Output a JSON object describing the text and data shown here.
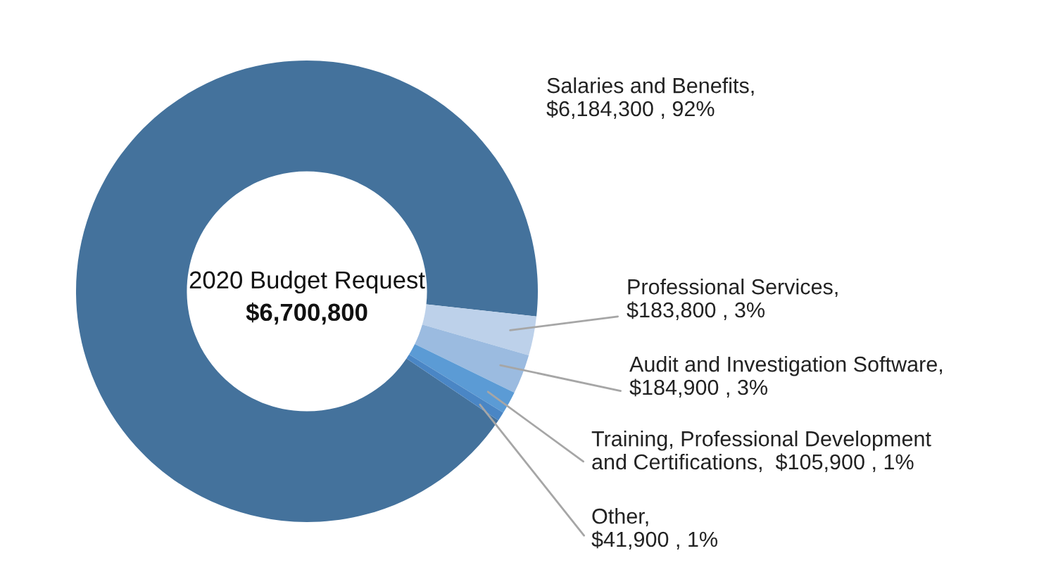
{
  "chart_data": {
    "type": "donut",
    "categories": [
      "Salaries and Benefits",
      "Professional Services",
      "Audit and Investigation Software",
      "Training, Professional Development and Certifications",
      "Other"
    ],
    "values": [
      6184300,
      183800,
      184900,
      105900,
      41900
    ],
    "value_labels": [
      ",\n$6,184,300 , 92%",
      ",\n$183,800 , 3%",
      ",\n$184,900 , 3%",
      ",  $105,900 , 1%",
      ",\n$41,900 , 1%"
    ],
    "colors": [
      "#44729c",
      "#bdd1ea",
      "#9bbbe0",
      "#5b9bd5",
      "#4a86c5"
    ],
    "annotations": [
      "2020 Budget Request",
      "$6,700,800"
    ],
    "legend": false
  }
}
